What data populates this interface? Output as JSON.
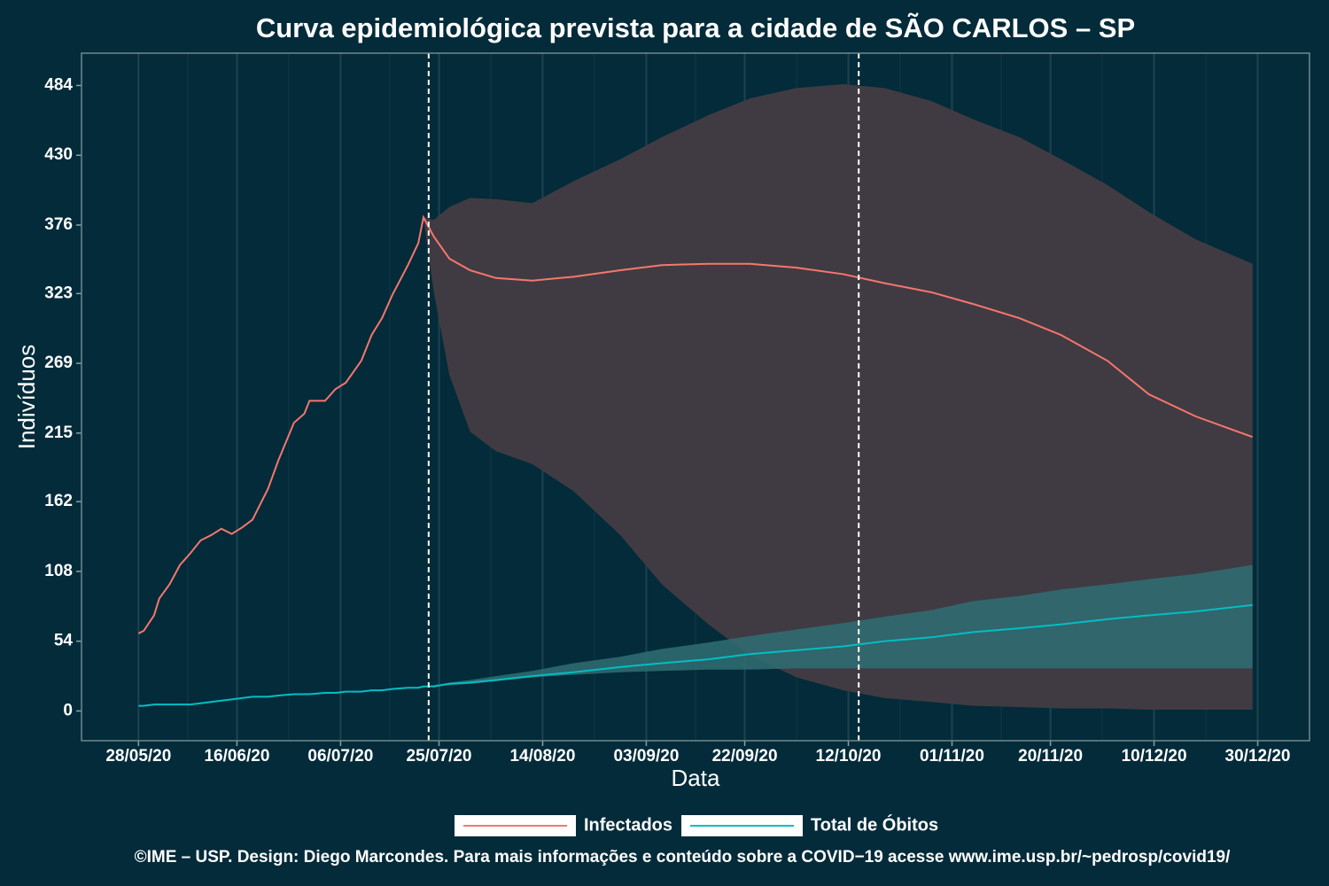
{
  "chart_data": {
    "type": "line",
    "title": "Curva epidemiológica prevista para a cidade de SÃO CARLOS – SP",
    "x_label": "Data",
    "y_label": "Indivíduos",
    "caption": "©IME – USP. Design: Diego Marcondes. Para mais informações e conteúdo sobre a COVID−19 acesse www.ime.usp.br/~pedrosp/covid19/",
    "x": [
      "28/05/20",
      "29/05/20",
      "31/05/20",
      "01/06/20",
      "03/06/20",
      "05/06/20",
      "07/06/20",
      "09/06/20",
      "11/06/20",
      "13/06/20",
      "15/06/20",
      "17/06/20",
      "19/06/20",
      "22/06/20",
      "24/06/20",
      "27/06/20",
      "29/06/20",
      "30/06/20",
      "03/07/20",
      "05/07/20",
      "07/07/20",
      "10/07/20",
      "12/07/20",
      "14/07/20",
      "16/07/20",
      "19/07/20",
      "21/07/20",
      "22/07/20",
      "24/07/20",
      "27/07/20",
      "31/07/20",
      "05/08/20",
      "12/08/20",
      "20/08/20",
      "29/08/20",
      "06/09/20",
      "15/09/20",
      "23/09/20",
      "02/10/20",
      "11/10/20",
      "19/10/20",
      "28/10/20",
      "05/11/20",
      "14/11/20",
      "22/11/20",
      "01/12/20",
      "09/12/20",
      "18/12/20",
      "29/12/20"
    ],
    "series": [
      {
        "name": "Infectados",
        "color": "#F8766D",
        "band_color": "#403b42",
        "values": [
          60,
          62,
          74,
          87,
          98,
          113,
          122,
          132,
          136,
          141,
          137,
          142,
          148,
          172,
          194,
          223,
          230,
          240,
          240,
          249,
          254,
          271,
          291,
          304,
          322,
          345,
          362,
          382,
          367,
          350,
          341,
          335,
          333,
          336,
          341,
          345,
          346,
          346,
          343,
          338,
          331,
          324,
          315,
          304,
          291,
          271,
          245,
          228,
          212
        ],
        "upper": [
          null,
          null,
          null,
          null,
          null,
          null,
          null,
          null,
          null,
          null,
          null,
          null,
          null,
          null,
          null,
          null,
          null,
          null,
          null,
          null,
          null,
          null,
          null,
          null,
          null,
          null,
          null,
          382,
          380,
          390,
          397,
          396,
          393,
          410,
          427,
          444,
          461,
          474,
          482,
          485,
          482,
          472,
          458,
          444,
          427,
          407,
          386,
          365,
          346
        ],
        "lower": [
          null,
          null,
          null,
          null,
          null,
          null,
          null,
          null,
          null,
          null,
          null,
          null,
          null,
          null,
          null,
          null,
          null,
          null,
          null,
          null,
          null,
          null,
          null,
          null,
          null,
          null,
          null,
          382,
          324,
          260,
          216,
          201,
          191,
          170,
          136,
          98,
          67,
          43,
          26,
          16,
          10,
          7,
          4,
          3,
          2,
          2,
          1,
          1,
          1
        ]
      },
      {
        "name": "Total de Óbitos",
        "color": "#00BFC4",
        "band_color": "#2f6f73",
        "values": [
          4,
          4,
          5,
          5,
          5,
          5,
          5,
          6,
          7,
          8,
          9,
          10,
          11,
          11,
          12,
          13,
          13,
          13,
          14,
          14,
          15,
          15,
          16,
          16,
          17,
          18,
          18,
          19,
          19,
          21,
          22,
          24,
          27,
          30,
          34,
          37,
          40,
          44,
          47,
          50,
          54,
          57,
          61,
          64,
          67,
          71,
          74,
          77,
          82
        ],
        "upper": [
          null,
          null,
          null,
          null,
          null,
          null,
          null,
          null,
          null,
          null,
          null,
          null,
          null,
          null,
          null,
          null,
          null,
          null,
          null,
          null,
          null,
          null,
          null,
          null,
          null,
          null,
          null,
          19,
          20,
          22,
          24,
          27,
          31,
          37,
          42,
          48,
          53,
          58,
          63,
          68,
          73,
          78,
          85,
          89,
          94,
          98,
          102,
          106,
          113
        ],
        "lower": [
          null,
          null,
          null,
          null,
          null,
          null,
          null,
          null,
          null,
          null,
          null,
          null,
          null,
          null,
          null,
          null,
          null,
          null,
          null,
          null,
          null,
          null,
          null,
          null,
          null,
          null,
          null,
          19,
          19,
          20,
          21,
          23,
          26,
          28,
          30,
          31,
          32,
          32,
          33,
          33,
          33,
          33,
          33,
          33,
          33,
          33,
          33,
          33,
          33
        ]
      }
    ],
    "xlim": [
      "17/05/20",
      "09/01/21"
    ],
    "xticks": [
      "28/05/20",
      "16/06/20",
      "06/07/20",
      "25/07/20",
      "14/08/20",
      "03/09/20",
      "22/09/20",
      "12/10/20",
      "01/11/20",
      "20/11/20",
      "10/12/20",
      "30/12/20"
    ],
    "ylim": [
      -23,
      509
    ],
    "yticks": [
      0,
      54,
      108,
      162,
      215,
      269,
      323,
      376,
      430,
      484
    ],
    "vlines": [
      "23/07/20",
      "14/10/20"
    ],
    "grid": true,
    "legend": "bottom"
  }
}
